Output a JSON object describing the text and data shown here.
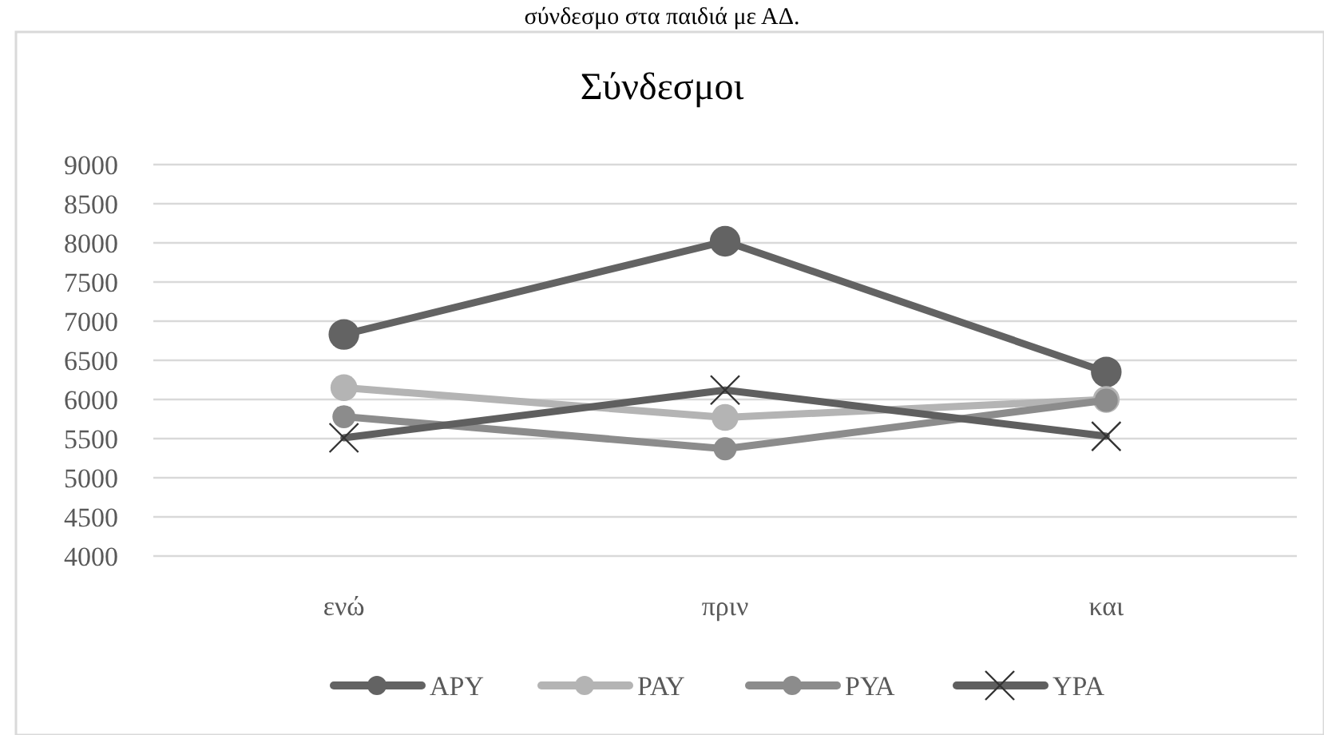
{
  "chart_data": {
    "type": "line",
    "title": "Σύνδεσμοι",
    "annotations": [
      "σύνδεσμο στα παιδιά με ΑΔ."
    ],
    "categories": [
      "ενώ",
      "πριν",
      "και"
    ],
    "series": [
      {
        "name": "ΑΡΥ",
        "color": "#636363",
        "values": [
          6830,
          8020,
          6350
        ],
        "marker": "circle"
      },
      {
        "name": "ΡΑΥ",
        "color": "#b4b4b4",
        "values": [
          6150,
          5770,
          6000
        ],
        "marker": "circle"
      },
      {
        "name": "ΡΥΑ",
        "color": "#8c8c8c",
        "values": [
          5780,
          5370,
          5990
        ],
        "marker": "circle"
      },
      {
        "name": "ΥΡΑ",
        "color": "#5f5f5f",
        "values": [
          5510,
          6120,
          5530
        ],
        "marker": "cross"
      }
    ],
    "ylim": [
      4000,
      9000
    ],
    "yticks": [
      4000,
      4500,
      5000,
      5500,
      6000,
      6500,
      7000,
      7500,
      8000,
      8500,
      9000
    ],
    "grid": "y",
    "legend": "bottom",
    "line_style": "solid"
  }
}
